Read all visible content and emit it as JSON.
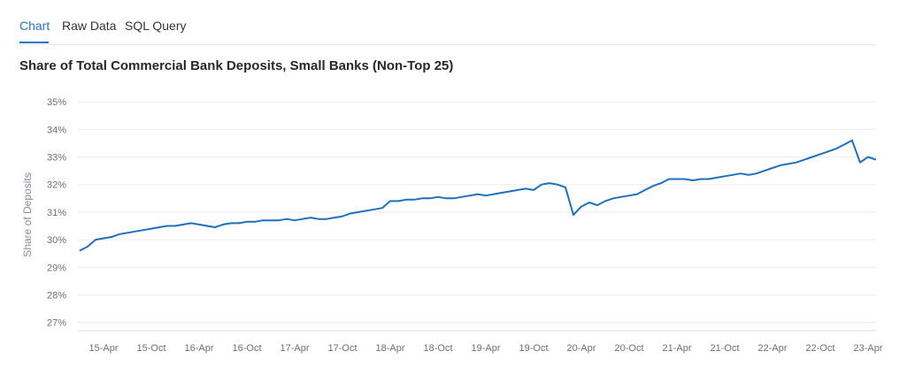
{
  "tabs": [
    {
      "label": "Chart",
      "active": true
    },
    {
      "label": "Raw Data",
      "active": false
    },
    {
      "label": "SQL Query",
      "active": false
    }
  ],
  "colors": {
    "accent": "#1f77c9",
    "line": "#1f6fc0",
    "grid": "#ececef"
  },
  "chart_data": {
    "type": "line",
    "title": "Share of Total Commercial Bank Deposits, Small Banks (Non-Top 25)",
    "xlabel": "",
    "ylabel": "Share of Deposits",
    "ylim": [
      26.7,
      35.1
    ],
    "y_ticks": [
      27,
      28,
      29,
      30,
      31,
      32,
      33,
      34,
      35
    ],
    "y_tick_labels": [
      "27%",
      "28%",
      "29%",
      "30%",
      "31%",
      "32%",
      "33%",
      "34%",
      "35%"
    ],
    "x_ticks": [
      "15-Apr",
      "15-Oct",
      "16-Apr",
      "16-Oct",
      "17-Apr",
      "17-Oct",
      "18-Apr",
      "18-Oct",
      "19-Apr",
      "19-Oct",
      "20-Apr",
      "20-Oct",
      "21-Apr",
      "21-Oct",
      "22-Apr",
      "22-Oct",
      "23-Apr"
    ],
    "grid": true,
    "series": [
      {
        "points": [
          [
            "2015-01",
            29.6
          ],
          [
            "2015-02",
            29.75
          ],
          [
            "2015-03",
            30.0
          ],
          [
            "2015-04",
            30.05
          ],
          [
            "2015-05",
            30.1
          ],
          [
            "2015-06",
            30.2
          ],
          [
            "2015-07",
            30.25
          ],
          [
            "2015-08",
            30.3
          ],
          [
            "2015-09",
            30.35
          ],
          [
            "2015-10",
            30.4
          ],
          [
            "2015-11",
            30.45
          ],
          [
            "2015-12",
            30.5
          ],
          [
            "2016-01",
            30.5
          ],
          [
            "2016-02",
            30.55
          ],
          [
            "2016-03",
            30.6
          ],
          [
            "2016-04",
            30.55
          ],
          [
            "2016-05",
            30.5
          ],
          [
            "2016-06",
            30.45
          ],
          [
            "2016-07",
            30.55
          ],
          [
            "2016-08",
            30.6
          ],
          [
            "2016-09",
            30.6
          ],
          [
            "2016-10",
            30.65
          ],
          [
            "2016-11",
            30.65
          ],
          [
            "2016-12",
            30.7
          ],
          [
            "2017-01",
            30.7
          ],
          [
            "2017-02",
            30.7
          ],
          [
            "2017-03",
            30.75
          ],
          [
            "2017-04",
            30.7
          ],
          [
            "2017-05",
            30.75
          ],
          [
            "2017-06",
            30.8
          ],
          [
            "2017-07",
            30.75
          ],
          [
            "2017-08",
            30.75
          ],
          [
            "2017-09",
            30.8
          ],
          [
            "2017-10",
            30.85
          ],
          [
            "2017-11",
            30.95
          ],
          [
            "2017-12",
            31.0
          ],
          [
            "2018-01",
            31.05
          ],
          [
            "2018-02",
            31.1
          ],
          [
            "2018-03",
            31.15
          ],
          [
            "2018-04",
            31.4
          ],
          [
            "2018-05",
            31.4
          ],
          [
            "2018-06",
            31.45
          ],
          [
            "2018-07",
            31.45
          ],
          [
            "2018-08",
            31.5
          ],
          [
            "2018-09",
            31.5
          ],
          [
            "2018-10",
            31.55
          ],
          [
            "2018-11",
            31.5
          ],
          [
            "2018-12",
            31.5
          ],
          [
            "2019-01",
            31.55
          ],
          [
            "2019-02",
            31.6
          ],
          [
            "2019-03",
            31.65
          ],
          [
            "2019-04",
            31.6
          ],
          [
            "2019-05",
            31.65
          ],
          [
            "2019-06",
            31.7
          ],
          [
            "2019-07",
            31.75
          ],
          [
            "2019-08",
            31.8
          ],
          [
            "2019-09",
            31.85
          ],
          [
            "2019-10",
            31.8
          ],
          [
            "2019-11",
            32.0
          ],
          [
            "2019-12",
            32.05
          ],
          [
            "2020-01",
            32.0
          ],
          [
            "2020-02",
            31.9
          ],
          [
            "2020-03",
            30.9
          ],
          [
            "2020-04",
            31.2
          ],
          [
            "2020-05",
            31.35
          ],
          [
            "2020-06",
            31.25
          ],
          [
            "2020-07",
            31.4
          ],
          [
            "2020-08",
            31.5
          ],
          [
            "2020-09",
            31.55
          ],
          [
            "2020-10",
            31.6
          ],
          [
            "2020-11",
            31.65
          ],
          [
            "2020-12",
            31.8
          ],
          [
            "2021-01",
            31.95
          ],
          [
            "2021-02",
            32.05
          ],
          [
            "2021-03",
            32.2
          ],
          [
            "2021-04",
            32.2
          ],
          [
            "2021-05",
            32.2
          ],
          [
            "2021-06",
            32.15
          ],
          [
            "2021-07",
            32.2
          ],
          [
            "2021-08",
            32.2
          ],
          [
            "2021-09",
            32.25
          ],
          [
            "2021-10",
            32.3
          ],
          [
            "2021-11",
            32.35
          ],
          [
            "2021-12",
            32.4
          ],
          [
            "2022-01",
            32.35
          ],
          [
            "2022-02",
            32.4
          ],
          [
            "2022-03",
            32.5
          ],
          [
            "2022-04",
            32.6
          ],
          [
            "2022-05",
            32.7
          ],
          [
            "2022-06",
            32.75
          ],
          [
            "2022-07",
            32.8
          ],
          [
            "2022-08",
            32.9
          ],
          [
            "2022-09",
            33.0
          ],
          [
            "2022-10",
            33.1
          ],
          [
            "2022-11",
            33.2
          ],
          [
            "2022-12",
            33.3
          ],
          [
            "2023-01",
            33.45
          ],
          [
            "2023-02",
            33.6
          ],
          [
            "2023-03",
            32.8
          ],
          [
            "2023-04",
            33.0
          ],
          [
            "2023-05",
            32.9
          ]
        ]
      }
    ]
  }
}
